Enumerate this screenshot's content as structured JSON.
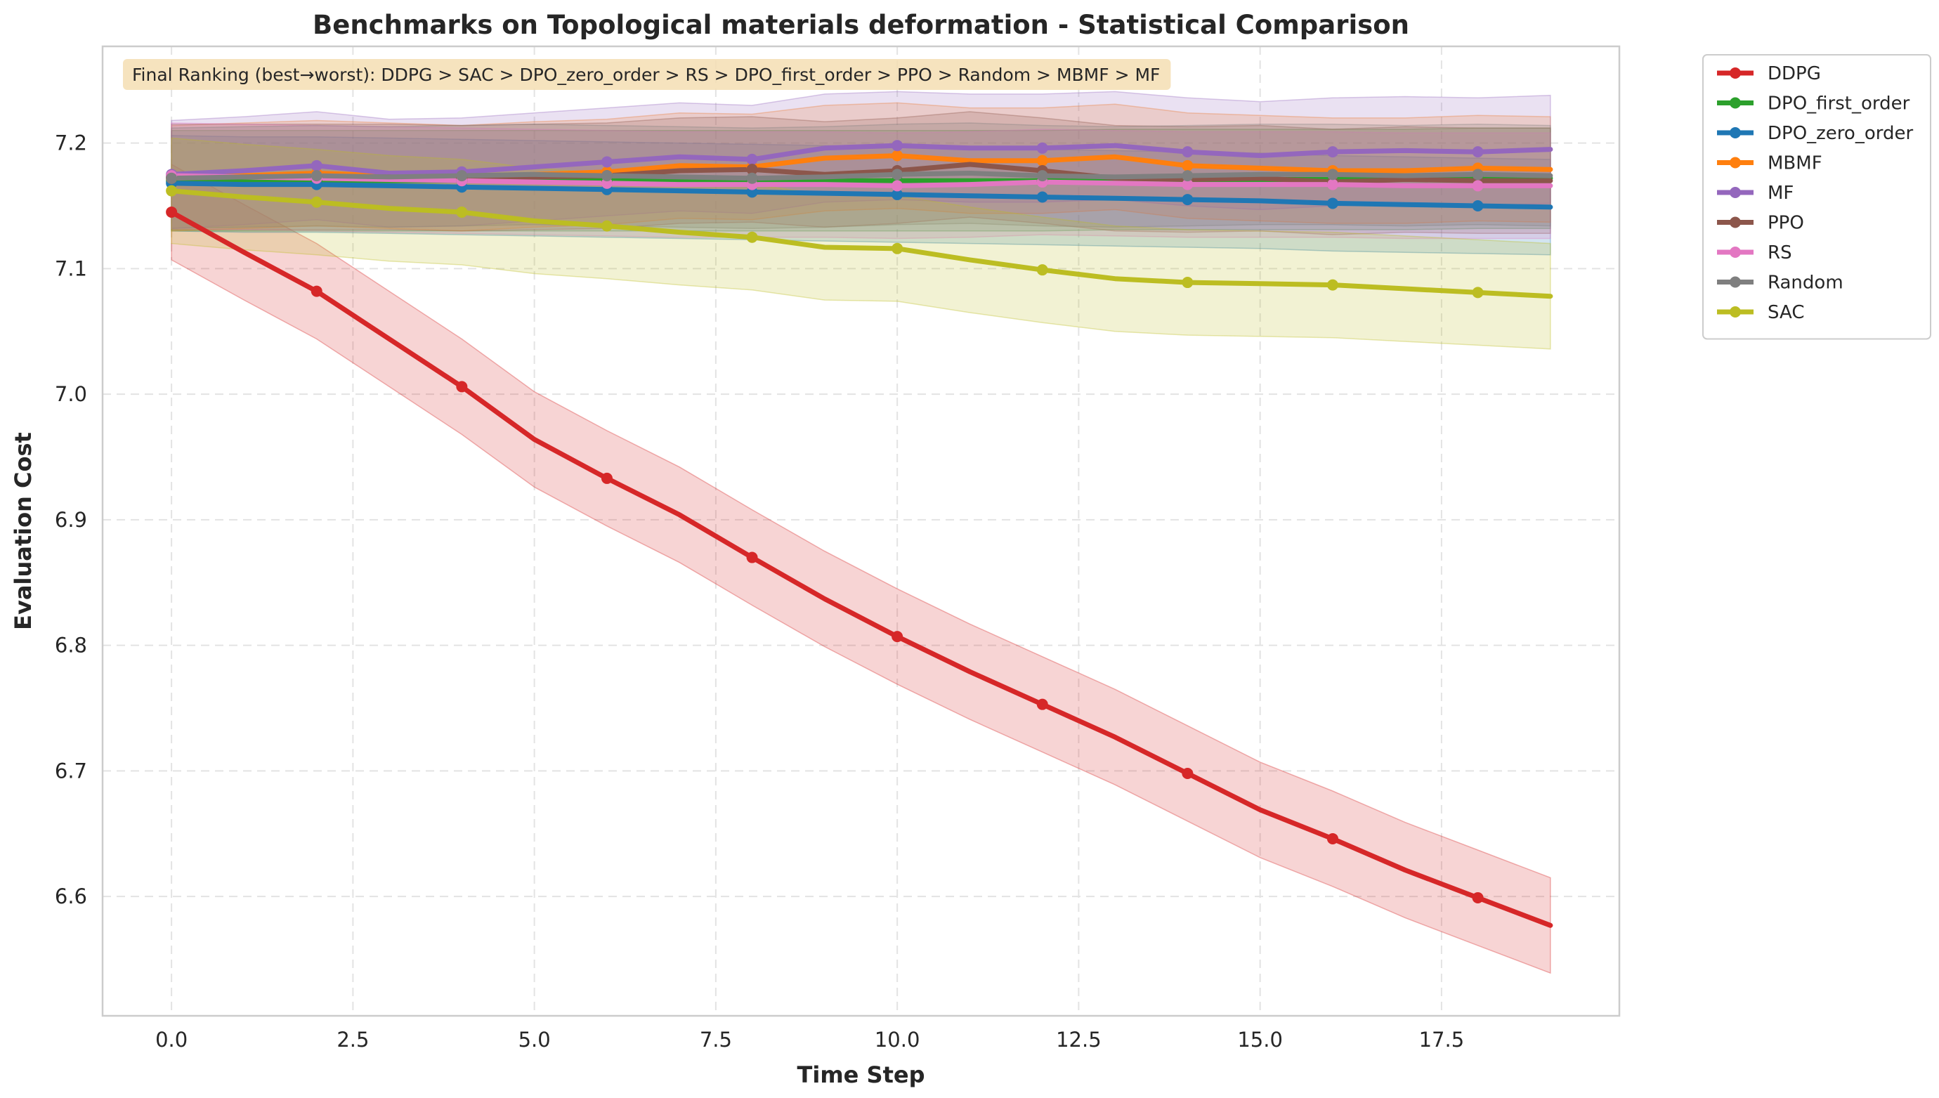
{
  "chart_data": {
    "type": "line",
    "title": "Benchmarks on Topological materials deformation - Statistical Comparison",
    "xlabel": "Time Step",
    "ylabel": "Evaluation Cost",
    "xlim": [
      -0.95,
      19.95
    ],
    "ylim": [
      6.505,
      7.277
    ],
    "xticks": [
      0,
      2.5,
      5,
      7.5,
      10,
      12.5,
      15,
      17.5
    ],
    "xtick_labels": [
      "0.0",
      "2.5",
      "5.0",
      "7.5",
      "10.0",
      "12.5",
      "15.0",
      "17.5"
    ],
    "yticks": [
      6.6,
      6.7,
      6.8,
      6.9,
      7.0,
      7.1,
      7.2
    ],
    "ytick_labels": [
      "6.6",
      "6.7",
      "6.8",
      "6.9",
      "7.0",
      "7.1",
      "7.2"
    ],
    "grid": true,
    "legend_position": "outside-top-right",
    "annotation": "Final Ranking (best→worst): DDPG > SAC > DPO_zero_order > RS > DPO_first_order > PPO > Random > MBMF > MF",
    "x": [
      0,
      1,
      2,
      3,
      4,
      5,
      6,
      7,
      8,
      9,
      10,
      11,
      12,
      13,
      14,
      15,
      16,
      17,
      18,
      19
    ],
    "marker_every": 2,
    "series": [
      {
        "name": "DDPG",
        "color": "#d62728",
        "values": [
          7.145,
          7.113,
          7.082,
          7.044,
          7.006,
          6.964,
          6.933,
          6.904,
          6.87,
          6.837,
          6.807,
          6.779,
          6.753,
          6.727,
          6.698,
          6.669,
          6.646,
          6.621,
          6.599,
          6.577
        ],
        "band": 0.038
      },
      {
        "name": "DPO_first_order",
        "color": "#2ca02c",
        "values": [
          7.17,
          7.17,
          7.17,
          7.17,
          7.17,
          7.17,
          7.17,
          7.17,
          7.17,
          7.17,
          7.17,
          7.17,
          7.17,
          7.171,
          7.171,
          7.171,
          7.171,
          7.171,
          7.172,
          7.172
        ],
        "band": 0.04
      },
      {
        "name": "DPO_zero_order",
        "color": "#1f77b4",
        "values": [
          7.168,
          7.167,
          7.167,
          7.166,
          7.165,
          7.164,
          7.163,
          7.162,
          7.161,
          7.16,
          7.159,
          7.158,
          7.157,
          7.156,
          7.155,
          7.154,
          7.152,
          7.151,
          7.15,
          7.149
        ],
        "band": 0.038
      },
      {
        "name": "MBMF",
        "color": "#ff7f0e",
        "values": [
          7.172,
          7.174,
          7.176,
          7.174,
          7.172,
          7.175,
          7.177,
          7.182,
          7.181,
          7.188,
          7.19,
          7.186,
          7.186,
          7.189,
          7.182,
          7.18,
          7.178,
          7.178,
          7.18,
          7.179
        ],
        "band": 0.042
      },
      {
        "name": "MF",
        "color": "#9467bd",
        "values": [
          7.175,
          7.178,
          7.182,
          7.176,
          7.177,
          7.181,
          7.185,
          7.189,
          7.187,
          7.196,
          7.198,
          7.196,
          7.196,
          7.198,
          7.193,
          7.19,
          7.193,
          7.194,
          7.193,
          7.195
        ],
        "band": 0.043
      },
      {
        "name": "PPO",
        "color": "#8c564b",
        "values": [
          7.173,
          7.173,
          7.173,
          7.173,
          7.172,
          7.173,
          7.174,
          7.178,
          7.179,
          7.175,
          7.178,
          7.183,
          7.178,
          7.172,
          7.171,
          7.172,
          7.169,
          7.171,
          7.17,
          7.17
        ],
        "band": 0.042
      },
      {
        "name": "RS",
        "color": "#e377c2",
        "values": [
          7.174,
          7.173,
          7.172,
          7.171,
          7.17,
          7.169,
          7.168,
          7.167,
          7.167,
          7.167,
          7.166,
          7.167,
          7.169,
          7.168,
          7.167,
          7.167,
          7.167,
          7.166,
          7.166,
          7.166
        ],
        "band": 0.042
      },
      {
        "name": "Random",
        "color": "#7f7f7f",
        "values": [
          7.172,
          7.173,
          7.174,
          7.173,
          7.174,
          7.175,
          7.174,
          7.173,
          7.172,
          7.173,
          7.175,
          7.176,
          7.174,
          7.173,
          7.174,
          7.175,
          7.175,
          7.174,
          7.175,
          7.174
        ],
        "band": 0.04
      },
      {
        "name": "SAC",
        "color": "#bcbd22",
        "values": [
          7.162,
          7.157,
          7.153,
          7.148,
          7.145,
          7.138,
          7.134,
          7.129,
          7.125,
          7.117,
          7.116,
          7.107,
          7.099,
          7.092,
          7.089,
          7.088,
          7.087,
          7.084,
          7.081,
          7.078
        ],
        "band": 0.042
      }
    ]
  }
}
